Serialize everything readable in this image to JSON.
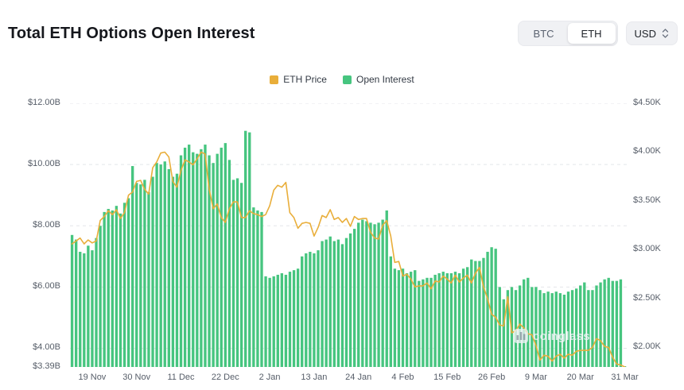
{
  "header": {
    "title": "Total ETH Options Open Interest",
    "coin_toggle": [
      {
        "label": "BTC",
        "selected": false
      },
      {
        "label": "ETH",
        "selected": true
      }
    ],
    "currency_select": {
      "value": "USD"
    }
  },
  "legend": [
    {
      "label": "ETH Price",
      "color": "#e9ae3a"
    },
    {
      "label": "Open Interest",
      "color": "#46c57f"
    }
  ],
  "watermark": {
    "text": "coinglass"
  },
  "chart_data": {
    "type": "bar",
    "title": "Total ETH Options Open Interest",
    "grid": "dashed-horizontal",
    "legend_position": "top-center",
    "x_tick_labels": [
      "19 Nov",
      "30 Nov",
      "11 Dec",
      "22 Dec",
      "2 Jan",
      "13 Jan",
      "24 Jan",
      "4 Feb",
      "15 Feb",
      "26 Feb",
      "9 Mar",
      "20 Mar",
      "31 Mar"
    ],
    "x_tick_indices": [
      5,
      16,
      27,
      38,
      49,
      60,
      71,
      82,
      93,
      104,
      115,
      126,
      137
    ],
    "left_axis": {
      "ticks": [
        "$12.00B",
        "$10.00B",
        "$8.00B",
        "$6.00B",
        "$4.00B",
        "$3.39B"
      ],
      "tick_values": [
        12,
        10,
        8,
        6,
        4,
        3.39
      ],
      "range": [
        3.39,
        12
      ],
      "unit": "USD billions"
    },
    "right_axis": {
      "ticks": [
        "$4.50K",
        "$4.00K",
        "$3.50K",
        "$3.00K",
        "$2.50K",
        "$2.00K"
      ],
      "tick_values": [
        4.5,
        4.0,
        3.5,
        3.0,
        2.5,
        2.0
      ],
      "range": [
        1.8,
        4.5
      ],
      "unit": "USD thousands"
    },
    "series": [
      {
        "name": "Open Interest",
        "type": "bar",
        "axis": "left",
        "unit": "USD billions",
        "color": "#46c57f",
        "values": [
          7.7,
          7.55,
          7.15,
          7.1,
          7.35,
          7.2,
          7.6,
          8.0,
          8.45,
          8.55,
          8.5,
          8.65,
          8.4,
          8.75,
          8.9,
          9.95,
          9.4,
          9.35,
          9.5,
          9.1,
          9.6,
          10.05,
          10.0,
          10.1,
          9.85,
          9.6,
          9.7,
          10.3,
          10.55,
          10.65,
          10.4,
          10.35,
          10.5,
          10.65,
          10.3,
          10.05,
          10.35,
          10.55,
          10.7,
          10.15,
          9.5,
          9.55,
          9.4,
          11.1,
          11.05,
          8.6,
          8.5,
          8.45,
          6.35,
          6.3,
          6.35,
          6.4,
          6.45,
          6.4,
          6.5,
          6.55,
          6.6,
          7.0,
          7.1,
          7.15,
          7.1,
          7.2,
          7.5,
          7.55,
          7.65,
          7.5,
          7.55,
          7.4,
          7.6,
          7.75,
          7.9,
          8.1,
          8.2,
          8.15,
          8.1,
          8.05,
          8.1,
          8.2,
          8.5,
          7.0,
          6.6,
          6.55,
          6.6,
          6.45,
          6.5,
          6.55,
          6.2,
          6.25,
          6.3,
          6.3,
          6.4,
          6.45,
          6.5,
          6.45,
          6.45,
          6.5,
          6.45,
          6.6,
          6.65,
          6.9,
          6.85,
          6.85,
          6.95,
          7.15,
          7.3,
          7.25,
          6.0,
          5.6,
          5.9,
          6.0,
          5.9,
          6.05,
          6.25,
          6.3,
          6.0,
          6.0,
          5.9,
          5.8,
          5.85,
          5.8,
          5.85,
          5.8,
          5.75,
          5.85,
          5.9,
          5.95,
          6.05,
          6.15,
          5.9,
          5.9,
          6.05,
          6.15,
          6.25,
          6.3,
          6.2,
          6.2,
          6.25,
          3.39
        ]
      },
      {
        "name": "ETH Price",
        "type": "line",
        "axis": "right",
        "unit": "USD thousands",
        "color": "#e9ae3a",
        "values": [
          3.06,
          3.09,
          3.12,
          3.06,
          3.1,
          3.07,
          3.09,
          3.3,
          3.34,
          3.4,
          3.36,
          3.41,
          3.32,
          3.38,
          3.56,
          3.59,
          3.7,
          3.71,
          3.62,
          3.57,
          3.84,
          3.9,
          3.99,
          4.0,
          3.95,
          3.7,
          3.64,
          3.81,
          3.92,
          3.9,
          3.87,
          3.93,
          4.0,
          3.98,
          3.62,
          3.42,
          3.47,
          3.33,
          3.28,
          3.42,
          3.49,
          3.49,
          3.33,
          3.33,
          3.4,
          3.37,
          3.36,
          3.34,
          3.36,
          3.45,
          3.61,
          3.66,
          3.64,
          3.69,
          3.38,
          3.33,
          3.22,
          3.27,
          3.28,
          3.27,
          3.14,
          3.23,
          3.35,
          3.33,
          3.41,
          3.31,
          3.33,
          3.28,
          3.32,
          3.24,
          3.34,
          3.31,
          3.32,
          3.32,
          3.18,
          3.12,
          3.11,
          3.25,
          3.3,
          3.14,
          2.87,
          2.88,
          2.73,
          2.75,
          2.7,
          2.62,
          2.63,
          2.63,
          2.66,
          2.6,
          2.68,
          2.67,
          2.73,
          2.7,
          2.66,
          2.74,
          2.67,
          2.71,
          2.74,
          2.66,
          2.76,
          2.82,
          2.62,
          2.5,
          2.34,
          2.31,
          2.23,
          2.22,
          2.52,
          2.15,
          2.17,
          2.24,
          2.2,
          2.14,
          2.13,
          2.02,
          1.87,
          1.92,
          1.91,
          1.86,
          1.91,
          1.93,
          1.89,
          1.93,
          1.92,
          1.96,
          1.97,
          1.97,
          1.97,
          2.0,
          2.09,
          2.07,
          2.01,
          2.0,
          1.9,
          1.83,
          1.82,
          1.8
        ]
      }
    ]
  }
}
